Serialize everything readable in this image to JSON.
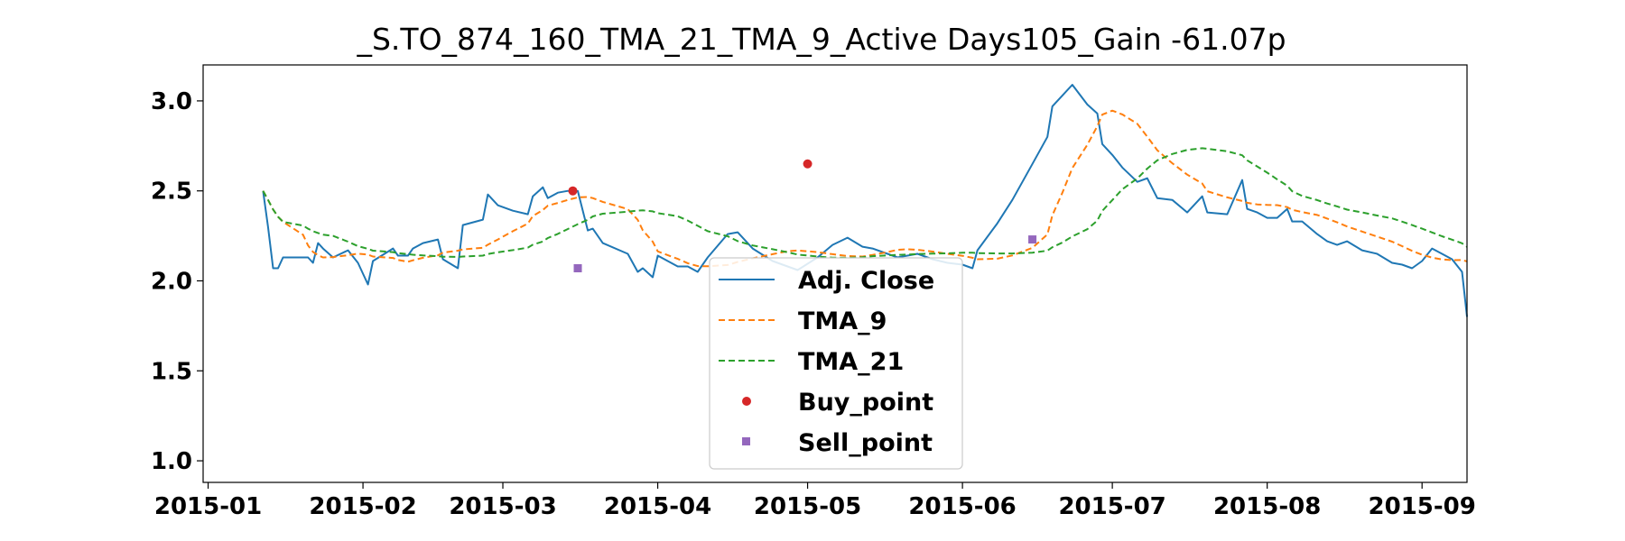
{
  "chart_data": {
    "type": "line",
    "title": "_S.TO_874_160_TMA_21_TMA_9_Active Days105_Gain -61.07p",
    "xlabel": "",
    "ylabel": "",
    "x_axis": {
      "kind": "date",
      "range": [
        "2014-12-31",
        "2015-09-10"
      ],
      "ticks": [
        "2015-01",
        "2015-02",
        "2015-03",
        "2015-04",
        "2015-05",
        "2015-06",
        "2015-07",
        "2015-08",
        "2015-09"
      ]
    },
    "y_axis": {
      "range": [
        0.88,
        3.2
      ],
      "ticks": [
        "1.0",
        "1.5",
        "2.0",
        "2.5",
        "3.0"
      ]
    },
    "grid": false,
    "legend_position": "bottom-center",
    "series": [
      {
        "name": "Adj. Close",
        "style": "solid",
        "color": "#1f77b4",
        "points": [
          [
            "2015-01-12",
            2.5
          ],
          [
            "2015-01-13",
            2.3
          ],
          [
            "2015-01-14",
            2.07
          ],
          [
            "2015-01-15",
            2.07
          ],
          [
            "2015-01-16",
            2.13
          ],
          [
            "2015-01-20",
            2.13
          ],
          [
            "2015-01-21",
            2.13
          ],
          [
            "2015-01-22",
            2.1
          ],
          [
            "2015-01-23",
            2.21
          ],
          [
            "2015-01-24",
            2.18
          ],
          [
            "2015-01-26",
            2.13
          ],
          [
            "2015-01-29",
            2.17
          ],
          [
            "2015-01-31",
            2.1
          ],
          [
            "2015-02-02",
            1.98
          ],
          [
            "2015-02-03",
            2.11
          ],
          [
            "2015-02-07",
            2.18
          ],
          [
            "2015-02-08",
            2.14
          ],
          [
            "2015-02-10",
            2.14
          ],
          [
            "2015-02-11",
            2.18
          ],
          [
            "2015-02-13",
            2.21
          ],
          [
            "2015-02-16",
            2.23
          ],
          [
            "2015-02-17",
            2.12
          ],
          [
            "2015-02-20",
            2.07
          ],
          [
            "2015-02-21",
            2.31
          ],
          [
            "2015-02-25",
            2.34
          ],
          [
            "2015-02-26",
            2.48
          ],
          [
            "2015-02-28",
            2.42
          ],
          [
            "2015-03-03",
            2.39
          ],
          [
            "2015-03-06",
            2.37
          ],
          [
            "2015-03-07",
            2.47
          ],
          [
            "2015-03-09",
            2.52
          ],
          [
            "2015-03-10",
            2.46
          ],
          [
            "2015-03-12",
            2.49
          ],
          [
            "2015-03-14",
            2.5
          ],
          [
            "2015-03-16",
            2.5
          ],
          [
            "2015-03-18",
            2.28
          ],
          [
            "2015-03-19",
            2.29
          ],
          [
            "2015-03-21",
            2.21
          ],
          [
            "2015-03-26",
            2.15
          ],
          [
            "2015-03-28",
            2.05
          ],
          [
            "2015-03-29",
            2.07
          ],
          [
            "2015-03-31",
            2.02
          ],
          [
            "2015-04-01",
            2.14
          ],
          [
            "2015-04-05",
            2.08
          ],
          [
            "2015-04-07",
            2.08
          ],
          [
            "2015-04-09",
            2.05
          ],
          [
            "2015-04-11",
            2.13
          ],
          [
            "2015-04-15",
            2.26
          ],
          [
            "2015-04-17",
            2.27
          ],
          [
            "2015-04-20",
            2.18
          ],
          [
            "2015-04-24",
            2.11
          ],
          [
            "2015-04-27",
            2.08
          ],
          [
            "2015-04-29",
            2.06
          ],
          [
            "2015-05-03",
            2.13
          ],
          [
            "2015-05-06",
            2.2
          ],
          [
            "2015-05-09",
            2.24
          ],
          [
            "2015-05-12",
            2.19
          ],
          [
            "2015-05-14",
            2.18
          ],
          [
            "2015-05-17",
            2.15
          ],
          [
            "2015-05-19",
            2.13
          ],
          [
            "2015-05-21",
            2.14
          ],
          [
            "2015-05-23",
            2.15
          ],
          [
            "2015-05-26",
            2.12
          ],
          [
            "2015-05-29",
            2.1
          ],
          [
            "2015-06-01",
            2.09
          ],
          [
            "2015-06-03",
            2.07
          ],
          [
            "2015-06-04",
            2.17
          ],
          [
            "2015-06-08",
            2.32
          ],
          [
            "2015-06-11",
            2.45
          ],
          [
            "2015-06-15",
            2.65
          ],
          [
            "2015-06-18",
            2.8
          ],
          [
            "2015-06-19",
            2.97
          ],
          [
            "2015-06-21",
            3.03
          ],
          [
            "2015-06-23",
            3.09
          ],
          [
            "2015-06-26",
            2.98
          ],
          [
            "2015-06-28",
            2.93
          ],
          [
            "2015-06-29",
            2.76
          ],
          [
            "2015-07-01",
            2.7
          ],
          [
            "2015-07-03",
            2.63
          ],
          [
            "2015-07-06",
            2.55
          ],
          [
            "2015-07-08",
            2.57
          ],
          [
            "2015-07-10",
            2.46
          ],
          [
            "2015-07-13",
            2.45
          ],
          [
            "2015-07-16",
            2.38
          ],
          [
            "2015-07-19",
            2.47
          ],
          [
            "2015-07-20",
            2.38
          ],
          [
            "2015-07-24",
            2.37
          ],
          [
            "2015-07-27",
            2.56
          ],
          [
            "2015-07-28",
            2.4
          ],
          [
            "2015-07-30",
            2.38
          ],
          [
            "2015-08-01",
            2.35
          ],
          [
            "2015-08-03",
            2.35
          ],
          [
            "2015-08-05",
            2.4
          ],
          [
            "2015-08-06",
            2.33
          ],
          [
            "2015-08-08",
            2.33
          ],
          [
            "2015-08-11",
            2.26
          ],
          [
            "2015-08-13",
            2.22
          ],
          [
            "2015-08-15",
            2.2
          ],
          [
            "2015-08-17",
            2.22
          ],
          [
            "2015-08-20",
            2.17
          ],
          [
            "2015-08-23",
            2.15
          ],
          [
            "2015-08-26",
            2.1
          ],
          [
            "2015-08-28",
            2.09
          ],
          [
            "2015-08-30",
            2.07
          ],
          [
            "2015-09-01",
            2.11
          ],
          [
            "2015-09-03",
            2.18
          ],
          [
            "2015-09-05",
            2.15
          ],
          [
            "2015-09-07",
            2.12
          ],
          [
            "2015-09-09",
            2.05
          ],
          [
            "2015-09-10",
            1.8
          ]
        ]
      },
      {
        "name": "TMA_9",
        "style": "dashed",
        "color": "#ff7f0e",
        "points": []
      },
      {
        "name": "TMA_21",
        "style": "dashed",
        "color": "#2ca02c",
        "points": []
      },
      {
        "name": "Buy_point",
        "style": "marker-circle",
        "color": "#d62728",
        "points": [
          [
            "2015-03-15",
            2.5
          ],
          [
            "2015-05-01",
            2.65
          ]
        ]
      },
      {
        "name": "Sell_point",
        "style": "marker-square",
        "color": "#9467bd",
        "points": [
          [
            "2015-03-16",
            2.07
          ],
          [
            "2015-06-15",
            2.23
          ]
        ]
      }
    ]
  }
}
